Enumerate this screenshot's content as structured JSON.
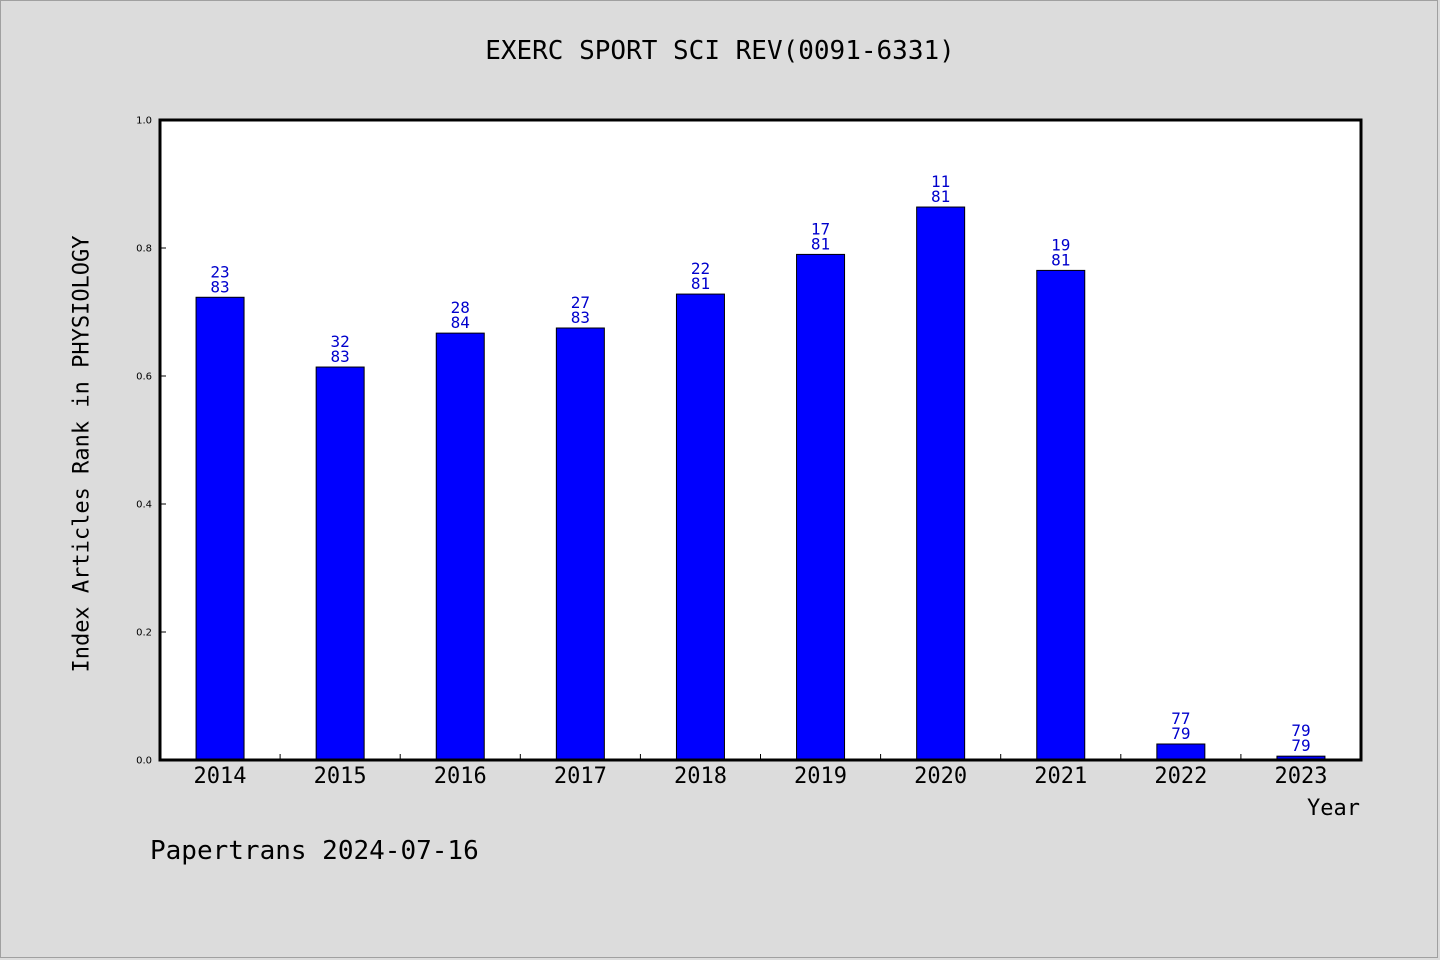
{
  "title": "EXERC SPORT SCI REV(0091-6331)",
  "footer": "Papertrans 2024-07-16",
  "chart_data": {
    "type": "bar",
    "title": "EXERC SPORT SCI REV(0091-6331)",
    "xlabel": "Year",
    "ylabel": "Index Articles Rank in PHYSIOLOGY",
    "ylim": [
      0,
      1.0
    ],
    "yticks": [
      "0.0",
      "0.2",
      "0.4",
      "0.6",
      "0.8",
      "1.0"
    ],
    "categories": [
      "2014",
      "2015",
      "2016",
      "2017",
      "2018",
      "2019",
      "2020",
      "2021",
      "2022",
      "2023"
    ],
    "values": [
      0.723,
      0.614,
      0.667,
      0.675,
      0.728,
      0.79,
      0.864,
      0.765,
      0.025,
      0.006
    ],
    "labels": [
      [
        "23",
        "83"
      ],
      [
        "32",
        "83"
      ],
      [
        "28",
        "84"
      ],
      [
        "27",
        "83"
      ],
      [
        "22",
        "81"
      ],
      [
        "17",
        "81"
      ],
      [
        "11",
        "81"
      ],
      [
        "19",
        "81"
      ],
      [
        "77",
        "79"
      ],
      [
        "79",
        "79"
      ]
    ],
    "bar_color": "#0000ff",
    "label_color": "#0000cc",
    "grid": false,
    "legend": "none"
  }
}
